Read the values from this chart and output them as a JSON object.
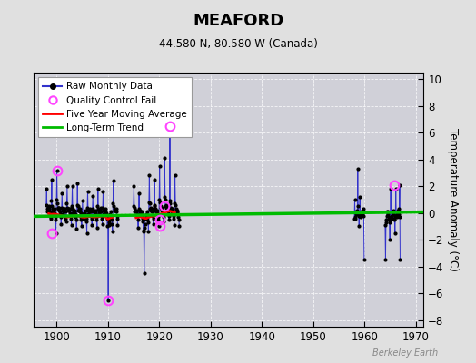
{
  "title": "MEAFORD",
  "subtitle": "44.580 N, 80.580 W (Canada)",
  "ylabel": "Temperature Anomaly (°C)",
  "watermark": "Berkeley Earth",
  "xlim": [
    1895.5,
    1971.5
  ],
  "ylim": [
    -8.5,
    10.5
  ],
  "yticks": [
    -8,
    -6,
    -4,
    -2,
    0,
    2,
    4,
    6,
    8,
    10
  ],
  "xticks": [
    1900,
    1910,
    1920,
    1930,
    1940,
    1950,
    1960,
    1970
  ],
  "bg_color": "#e0e0e0",
  "plot_bg_color": "#d0d0d8",
  "raw_color": "#3333cc",
  "raw_dot_color": "#000000",
  "qc_color": "#ff44ff",
  "moving_avg_color": "#ff0000",
  "trend_color": "#00bb00",
  "segments": [
    {
      "year_start": 1898,
      "year_end": 1911,
      "monthly_data": [
        [
          1898,
          [
            0.6,
            1.8,
            0.3,
            0.1,
            0.2,
            0.4,
            0.3,
            0.5,
            0.1,
            -0.2,
            -0.4,
            -0.3
          ]
        ],
        [
          1899,
          [
            0.9,
            2.5,
            0.5,
            0.1,
            0.3,
            0.2,
            0.2,
            0.3,
            0.0,
            -0.3,
            -0.5,
            -1.5
          ]
        ],
        [
          1900,
          [
            1.0,
            3.2,
            0.7,
            0.4,
            0.4,
            0.3,
            0.2,
            0.4,
            0.1,
            -0.1,
            -0.3,
            -0.8
          ]
        ],
        [
          1901,
          [
            0.4,
            1.5,
            0.2,
            -0.1,
            0.1,
            0.2,
            0.3,
            0.3,
            0.1,
            -0.2,
            -0.4,
            -0.6
          ]
        ],
        [
          1902,
          [
            0.7,
            2.0,
            0.4,
            0.2,
            0.3,
            0.3,
            0.2,
            0.3,
            0.0,
            -0.2,
            -0.4,
            -0.9
          ]
        ],
        [
          1903,
          [
            0.5,
            2.0,
            0.3,
            0.0,
            0.1,
            0.2,
            0.1,
            0.2,
            -0.1,
            -0.3,
            -0.5,
            -1.2
          ]
        ],
        [
          1904,
          [
            0.6,
            2.2,
            0.5,
            0.2,
            0.3,
            0.2,
            0.1,
            0.3,
            0.0,
            -0.3,
            -0.5,
            -1.0
          ]
        ],
        [
          1905,
          [
            -0.1,
            0.9,
            -0.2,
            -0.4,
            -0.1,
            0.0,
            0.0,
            0.2,
            -0.2,
            -0.4,
            -0.6,
            -1.5
          ]
        ],
        [
          1906,
          [
            0.4,
            1.6,
            0.2,
            -0.1,
            0.1,
            0.2,
            0.1,
            0.3,
            0.1,
            -0.2,
            -0.4,
            -0.9
          ]
        ],
        [
          1907,
          [
            0.3,
            1.3,
            0.1,
            -0.2,
            0.1,
            0.1,
            0.1,
            0.2,
            0.0,
            -0.3,
            -0.5,
            -1.1
          ]
        ],
        [
          1908,
          [
            0.5,
            1.8,
            0.3,
            0.0,
            0.2,
            0.3,
            0.2,
            0.4,
            0.1,
            -0.2,
            -0.4,
            -0.8
          ]
        ],
        [
          1909,
          [
            0.4,
            1.6,
            0.2,
            -0.1,
            0.1,
            0.2,
            0.1,
            0.3,
            0.0,
            -0.2,
            -0.4,
            -1.0
          ]
        ],
        [
          1910,
          [
            -0.4,
            -6.5,
            -0.9,
            -0.7,
            -0.4,
            -0.2,
            -0.1,
            0.1,
            -0.3,
            -0.5,
            -0.8,
            -1.4
          ]
        ],
        [
          1911,
          [
            0.7,
            2.4,
            0.5,
            0.2,
            0.3,
            0.2,
            0.2,
            0.3,
            0.1,
            -0.2,
            -0.4,
            -0.9
          ]
        ]
      ]
    },
    {
      "year_start": 1915,
      "year_end": 1923,
      "monthly_data": [
        [
          1915,
          [
            0.5,
            2.0,
            0.4,
            0.1,
            0.2,
            0.1,
            0.1,
            0.2,
            -0.1,
            -0.2,
            -0.5,
            -1.1
          ]
        ],
        [
          1916,
          [
            0.3,
            1.5,
            0.2,
            -0.1,
            0.1,
            0.0,
            0.0,
            0.1,
            -0.2,
            -0.4,
            -0.6,
            -1.3
          ]
        ],
        [
          1917,
          [
            -1.4,
            -4.5,
            -1.1,
            -0.8,
            -0.4,
            -0.2,
            -0.1,
            0.1,
            -0.3,
            -0.5,
            -0.7,
            -1.4
          ]
        ],
        [
          1918,
          [
            0.8,
            2.8,
            0.7,
            0.3,
            0.4,
            0.2,
            0.1,
            0.3,
            0.1,
            -0.2,
            -0.4,
            -0.8
          ]
        ],
        [
          1919,
          [
            0.6,
            2.5,
            0.5,
            0.2,
            0.3,
            0.1,
            0.1,
            0.2,
            0.0,
            -0.3,
            -0.5,
            -1.0
          ]
        ],
        [
          1920,
          [
            1.0,
            3.5,
            0.8,
            0.4,
            0.5,
            0.3,
            0.2,
            0.4,
            0.1,
            -0.1,
            -0.3,
            -0.6
          ]
        ],
        [
          1921,
          [
            1.2,
            4.1,
            1.0,
            0.5,
            0.6,
            0.4,
            0.3,
            0.5,
            0.2,
            0.0,
            -0.2,
            -0.5
          ]
        ],
        [
          1922,
          [
            0.9,
            6.5,
            0.7,
            0.3,
            0.4,
            0.2,
            0.1,
            0.3,
            0.0,
            -0.2,
            -0.4,
            -0.9
          ]
        ],
        [
          1923,
          [
            0.7,
            2.8,
            0.6,
            0.2,
            0.3,
            0.1,
            0.0,
            0.2,
            -0.1,
            -0.3,
            -0.5,
            -1.0
          ]
        ]
      ]
    },
    {
      "year_start": 1958,
      "year_end": 1959,
      "monthly_data": [
        [
          1958,
          [
            -0.4,
            1.0,
            -0.3,
            -0.4,
            -0.1,
            0.1,
            -0.1,
            0.2,
            3.3,
            0.5,
            -0.2,
            -1.0
          ]
        ],
        [
          1959,
          [
            -0.2,
            1.2,
            -0.1,
            -0.3,
            -0.1,
            0.1,
            0.1,
            0.2,
            -0.1,
            0.3,
            -0.2,
            -3.5
          ]
        ]
      ]
    },
    {
      "year_start": 1964,
      "year_end": 1966,
      "monthly_data": [
        [
          1964,
          [
            -0.9,
            -3.5,
            -0.7,
            -0.5,
            -0.2,
            0.1,
            -0.1,
            0.1,
            -0.3,
            -0.5,
            -0.7,
            -2.0
          ]
        ],
        [
          1965,
          [
            -0.4,
            1.8,
            -0.3,
            -0.4,
            -0.2,
            0.1,
            0.1,
            0.2,
            -0.1,
            -0.4,
            -0.5,
            -1.5
          ]
        ],
        [
          1966,
          [
            -0.2,
            1.8,
            -0.2,
            -0.3,
            -0.1,
            0.2,
            0.1,
            0.3,
            -0.1,
            -0.3,
            2.1,
            -3.5
          ]
        ]
      ]
    }
  ],
  "qc_fail_points": [
    [
      1899.04,
      -1.5
    ],
    [
      1900.08,
      3.2
    ],
    [
      1910.08,
      -6.5
    ],
    [
      1920.08,
      -0.5
    ],
    [
      1920.17,
      -1.0
    ],
    [
      1921.0,
      0.5
    ],
    [
      1922.08,
      6.5
    ],
    [
      1965.83,
      2.1
    ]
  ],
  "moving_avg_x": [
    1898.5,
    1899.0,
    1899.5,
    1900.0,
    1900.5,
    1901.0,
    1901.5,
    1902.0,
    1902.5,
    1903.0,
    1903.5,
    1904.0,
    1904.5,
    1905.0,
    1905.5,
    1906.0,
    1906.5,
    1907.0,
    1907.5,
    1908.0,
    1908.5,
    1909.0,
    1909.5,
    1910.0,
    1910.5,
    1911.0,
    1915.5,
    1916.0,
    1916.5,
    1917.0,
    1917.5,
    1918.0,
    1918.5,
    1919.0,
    1919.5,
    1920.0,
    1920.5,
    1921.0,
    1921.5,
    1922.0,
    1922.5,
    1923.0
  ],
  "moving_avg_y": [
    -0.05,
    -0.1,
    -0.08,
    -0.1,
    -0.15,
    -0.2,
    -0.25,
    -0.3,
    -0.28,
    -0.25,
    -0.22,
    -0.2,
    -0.25,
    -0.3,
    -0.32,
    -0.28,
    -0.25,
    -0.28,
    -0.3,
    -0.28,
    -0.25,
    -0.22,
    -0.28,
    -0.45,
    -0.35,
    -0.3,
    -0.35,
    -0.3,
    -0.28,
    -0.38,
    -0.4,
    -0.3,
    -0.25,
    -0.2,
    -0.15,
    -0.1,
    -0.05,
    0.05,
    0.1,
    0.15,
    0.1,
    0.05
  ],
  "trend_x": [
    1895.5,
    1971.5
  ],
  "trend_y": [
    -0.25,
    0.08
  ]
}
